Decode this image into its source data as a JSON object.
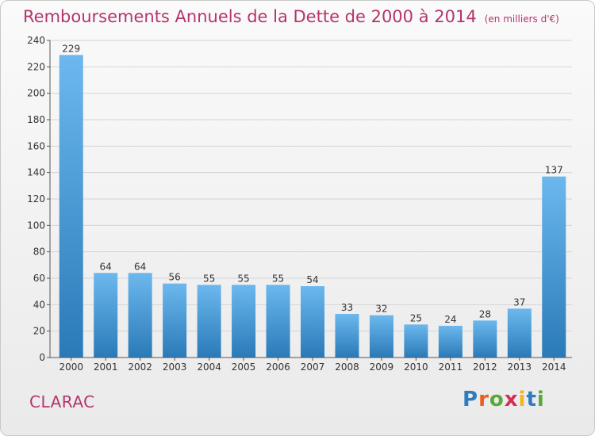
{
  "header": {
    "title": "Remboursements Annuels de la Dette de 2000 à 2014",
    "unit": "(en milliers d'€)"
  },
  "footer": {
    "commune": "CLARAC",
    "brand_letters": [
      {
        "ch": "P",
        "color": "#2e7bbf"
      },
      {
        "ch": "r",
        "color": "#e8601c"
      },
      {
        "ch": "o",
        "color": "#58a83a"
      },
      {
        "ch": "x",
        "color": "#d42e56"
      },
      {
        "ch": "i",
        "color": "#f2b51a"
      },
      {
        "ch": "t",
        "color": "#2e7bbf"
      },
      {
        "ch": "i",
        "color": "#58a83a"
      }
    ]
  },
  "chart_data": {
    "type": "bar",
    "categories": [
      "2000",
      "2001",
      "2002",
      "2003",
      "2004",
      "2005",
      "2006",
      "2007",
      "2008",
      "2009",
      "2010",
      "2011",
      "2012",
      "2013",
      "2014"
    ],
    "values": [
      229,
      64,
      64,
      56,
      55,
      55,
      55,
      54,
      33,
      32,
      25,
      24,
      28,
      37,
      137
    ],
    "ylim": [
      0,
      240
    ],
    "yticks": [
      0,
      20,
      40,
      60,
      80,
      100,
      120,
      140,
      160,
      180,
      200,
      220,
      240
    ],
    "grid": true,
    "bar_color_top": "#6cb8ee",
    "bar_color_bottom": "#2a7ab8"
  }
}
